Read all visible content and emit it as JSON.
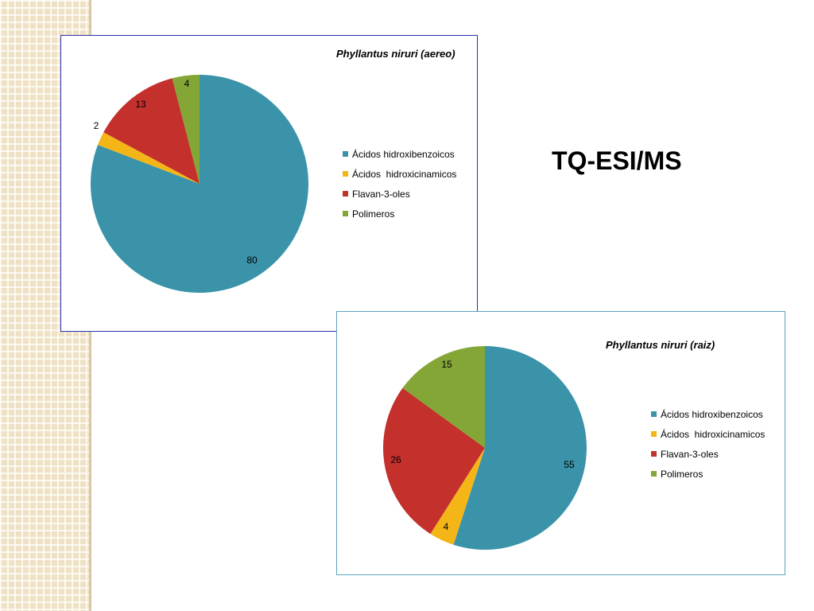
{
  "slide": {
    "title": "TQ-ESI/MS"
  },
  "colors": {
    "Ácidos hidroxibenzoicos": "#3a93a8",
    "Ácidos  hidroxicinamicos": "#f4b617",
    "Flavan-3-oles": "#c4302c",
    "Polimeros": "#84a637"
  },
  "chart_data": [
    {
      "type": "pie",
      "title": "Phyllantus niruri (aereo)",
      "categories": [
        "Ácidos hidroxibenzoicos",
        "Ácidos  hidroxicinamicos",
        "Flavan-3-oles",
        "Polimeros"
      ],
      "values": [
        80,
        2,
        13,
        4
      ],
      "data_labels": [
        "80",
        "2",
        "13",
        "4"
      ],
      "legend_position": "right"
    },
    {
      "type": "pie",
      "title": "Phyllantus niruri (raiz)",
      "categories": [
        "Ácidos hidroxibenzoicos",
        "Ácidos  hidroxicinamicos",
        "Flavan-3-oles",
        "Polimeros"
      ],
      "values": [
        55,
        4,
        26,
        15
      ],
      "data_labels": [
        "55",
        "4",
        "26",
        "15"
      ],
      "legend_position": "right"
    }
  ]
}
